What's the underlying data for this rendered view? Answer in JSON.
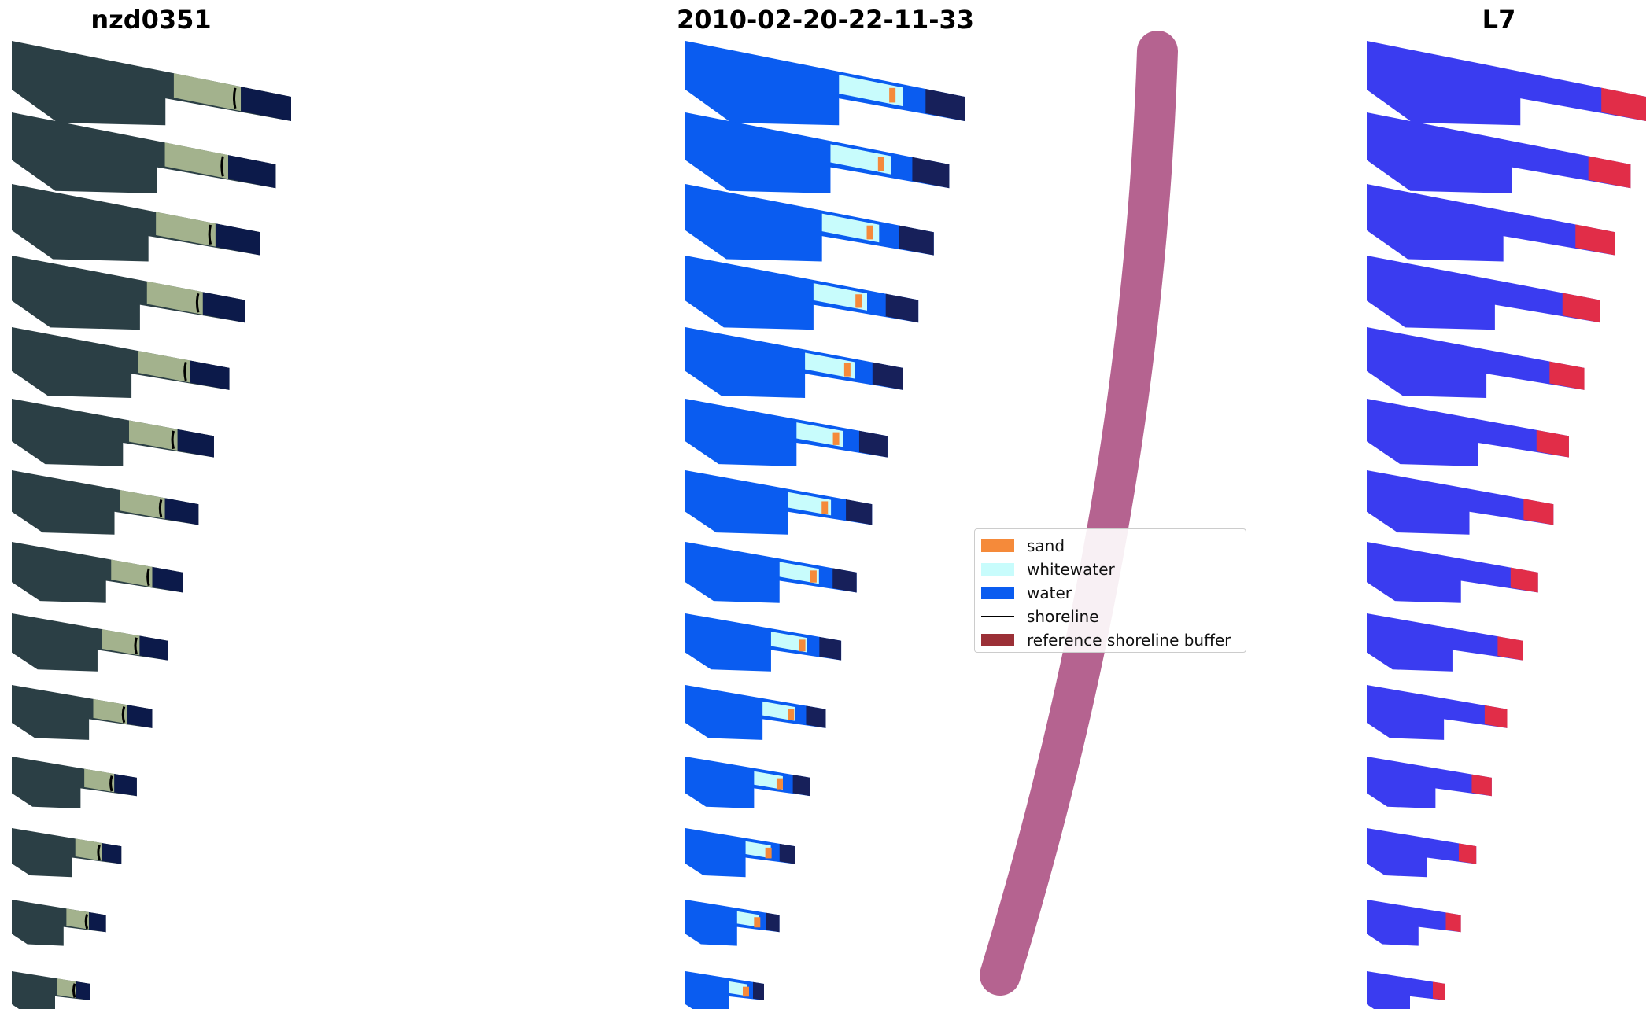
{
  "panels": [
    {
      "title": "nzd0351"
    },
    {
      "title": "2010-02-20-22-11-33"
    },
    {
      "title": "L7"
    }
  ],
  "legend": {
    "items": [
      {
        "label": "sand",
        "kind": "swatch",
        "color": "#f58a3a"
      },
      {
        "label": "whitewater",
        "kind": "swatch",
        "color": "#c8fcfc"
      },
      {
        "label": "water",
        "kind": "swatch",
        "color": "#0a5cf0"
      },
      {
        "label": "shoreline",
        "kind": "line",
        "color": "#000000"
      },
      {
        "label": "reference shoreline buffer",
        "kind": "swatch",
        "color": "#9b3037"
      }
    ]
  },
  "colors": {
    "rgb_land": "#2b3f45",
    "rgb_sea": "#0c1a4a",
    "rgb_surf": "#b9c79a",
    "class_water": "#0a5cf0",
    "class_whitewater": "#c8fcfc",
    "class_sand": "#f58a3a",
    "class_dark": "#17205a",
    "mndwi_blue": "#3a3cf0",
    "mndwi_red": "#ff2a2a",
    "buffer": "#a8487c"
  }
}
